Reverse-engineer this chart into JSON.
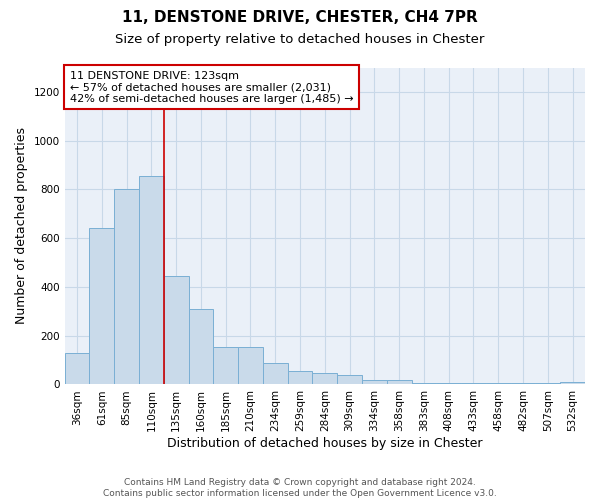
{
  "title1": "11, DENSTONE DRIVE, CHESTER, CH4 7PR",
  "title2": "Size of property relative to detached houses in Chester",
  "xlabel": "Distribution of detached houses by size in Chester",
  "ylabel": "Number of detached properties",
  "categories": [
    "36sqm",
    "61sqm",
    "85sqm",
    "110sqm",
    "135sqm",
    "160sqm",
    "185sqm",
    "210sqm",
    "234sqm",
    "259sqm",
    "284sqm",
    "309sqm",
    "334sqm",
    "358sqm",
    "383sqm",
    "408sqm",
    "433sqm",
    "458sqm",
    "482sqm",
    "507sqm",
    "532sqm"
  ],
  "values": [
    130,
    640,
    800,
    855,
    445,
    310,
    155,
    155,
    90,
    55,
    45,
    40,
    20,
    20,
    5,
    5,
    5,
    5,
    5,
    5,
    10
  ],
  "bar_color": "#c9daea",
  "bar_edge_color": "#7aafd4",
  "annotation_line1": "11 DENSTONE DRIVE: 123sqm",
  "annotation_line2": "← 57% of detached houses are smaller (2,031)",
  "annotation_line3": "42% of semi-detached houses are larger (1,485) →",
  "annotation_box_color": "#ffffff",
  "annotation_box_edge_color": "#cc0000",
  "vline_color": "#cc0000",
  "ylim": [
    0,
    1300
  ],
  "yticks": [
    0,
    200,
    400,
    600,
    800,
    1000,
    1200
  ],
  "grid_color": "#c8d8e8",
  "bg_color": "#eaf0f8",
  "footer": "Contains HM Land Registry data © Crown copyright and database right 2024.\nContains public sector information licensed under the Open Government Licence v3.0.",
  "title1_fontsize": 11,
  "title2_fontsize": 9.5,
  "xlabel_fontsize": 9,
  "ylabel_fontsize": 9,
  "tick_fontsize": 7.5,
  "annotation_fontsize": 8,
  "footer_fontsize": 6.5
}
